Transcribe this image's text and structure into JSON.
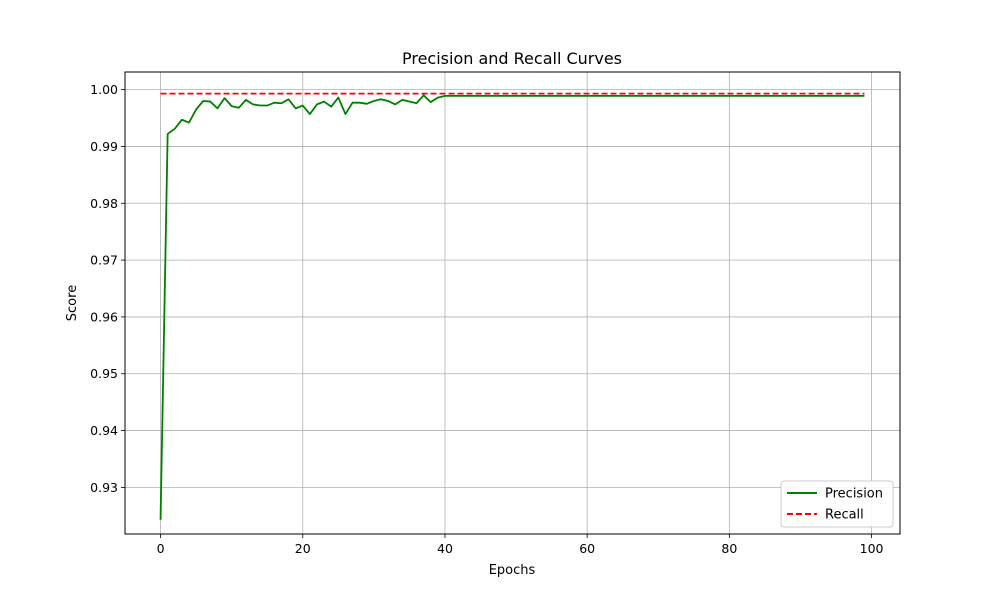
{
  "chart_data": {
    "type": "line",
    "title": "Precision and Recall Curves",
    "xlabel": "Epochs",
    "ylabel": "Score",
    "xlim": [
      -5,
      104
    ],
    "ylim": [
      0.9218,
      1.0031
    ],
    "xticks": [
      0,
      20,
      40,
      60,
      80,
      100
    ],
    "yticks": [
      0.93,
      0.94,
      0.95,
      0.96,
      0.97,
      0.98,
      0.99,
      1.0
    ],
    "ytick_labels": [
      "0.93",
      "0.94",
      "0.95",
      "0.96",
      "0.97",
      "0.98",
      "0.99",
      "1.00"
    ],
    "grid": true,
    "legend_position": "bottom-right",
    "series": [
      {
        "name": "Precision",
        "color": "#008000",
        "style": "solid",
        "x": [
          0,
          1,
          2,
          3,
          4,
          5,
          6,
          7,
          8,
          9,
          10,
          11,
          12,
          13,
          14,
          15,
          16,
          17,
          18,
          19,
          20,
          21,
          22,
          23,
          24,
          25,
          26,
          27,
          28,
          29,
          30,
          31,
          32,
          33,
          34,
          35,
          36,
          37,
          38,
          39,
          40,
          41,
          42,
          43,
          44,
          45,
          46,
          47,
          48,
          49,
          50,
          51,
          52,
          53,
          54,
          55,
          56,
          57,
          58,
          59,
          60,
          61,
          62,
          63,
          64,
          65,
          66,
          67,
          68,
          69,
          70,
          71,
          72,
          73,
          74,
          75,
          76,
          77,
          78,
          79,
          80,
          81,
          82,
          83,
          84,
          85,
          86,
          87,
          88,
          89,
          90,
          91,
          92,
          93,
          94,
          95,
          96,
          97,
          98,
          99
        ],
        "values": [
          0.9243,
          0.9922,
          0.9931,
          0.9947,
          0.9942,
          0.9965,
          0.998,
          0.9979,
          0.9967,
          0.9985,
          0.9971,
          0.9968,
          0.9982,
          0.9974,
          0.9972,
          0.9972,
          0.9977,
          0.9976,
          0.9983,
          0.9967,
          0.9972,
          0.9957,
          0.9974,
          0.9979,
          0.997,
          0.9986,
          0.9957,
          0.9977,
          0.9977,
          0.9975,
          0.998,
          0.9983,
          0.998,
          0.9974,
          0.9982,
          0.9979,
          0.9976,
          0.999,
          0.9978,
          0.9986,
          0.9989,
          0.9989,
          0.9989,
          0.9989,
          0.9989,
          0.9989,
          0.9989,
          0.9989,
          0.9989,
          0.9989,
          0.9989,
          0.9989,
          0.9989,
          0.9989,
          0.9989,
          0.9989,
          0.9989,
          0.9989,
          0.9989,
          0.9989,
          0.9989,
          0.9989,
          0.9989,
          0.9989,
          0.9989,
          0.9989,
          0.9989,
          0.9989,
          0.9989,
          0.9989,
          0.9989,
          0.9989,
          0.9989,
          0.9989,
          0.9989,
          0.9989,
          0.9989,
          0.9989,
          0.9989,
          0.9989,
          0.9989,
          0.9989,
          0.9989,
          0.9989,
          0.9989,
          0.9989,
          0.9989,
          0.9989,
          0.9989,
          0.9989,
          0.9989,
          0.9989,
          0.9989,
          0.9989,
          0.9989,
          0.9989,
          0.9989,
          0.9989,
          0.9989,
          0.9989
        ]
      },
      {
        "name": "Recall",
        "color": "#ff0000",
        "style": "dashed",
        "x": [
          0,
          99
        ],
        "values": [
          0.9993,
          0.9993
        ]
      }
    ]
  }
}
